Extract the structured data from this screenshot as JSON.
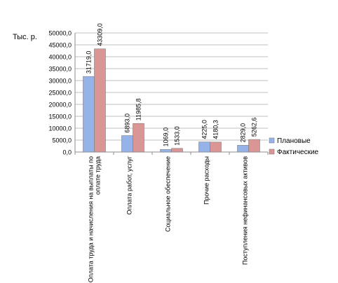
{
  "chart_data": {
    "type": "bar",
    "unit_label": "Тыс. р.",
    "categories": [
      [
        "Оплата труда и начисления на выплаты по",
        "оплате труда"
      ],
      [
        "Оплата работ, услуг"
      ],
      [
        "Социальное обеспечение"
      ],
      [
        "Прочие расходы"
      ],
      [
        "Поступления нефинансовых активов"
      ]
    ],
    "series": [
      {
        "name": "Плановые",
        "color": "#95b3e8",
        "values": [
          31719.0,
          6893.0,
          1069.0,
          4225.0,
          2829.0
        ],
        "labels": [
          "31719,0",
          "6893,0",
          "1069,0",
          "4225,0",
          "2829,0"
        ]
      },
      {
        "name": "Фактические",
        "color": "#d99694",
        "values": [
          43309.0,
          11985.8,
          1533.0,
          4180.3,
          5262.6
        ],
        "labels": [
          "43309,0",
          "11985,8",
          "1533,0",
          "4180,3",
          "5262,6"
        ]
      }
    ],
    "ylim": [
      0,
      50000
    ],
    "yticks": [
      "0,0",
      "5000,0",
      "10000,0",
      "15000,0",
      "20000,0",
      "25000,0",
      "30000,0",
      "35000,0",
      "40000,0",
      "45000,0",
      "50000,0"
    ],
    "grid": true,
    "legend_position": "right"
  }
}
